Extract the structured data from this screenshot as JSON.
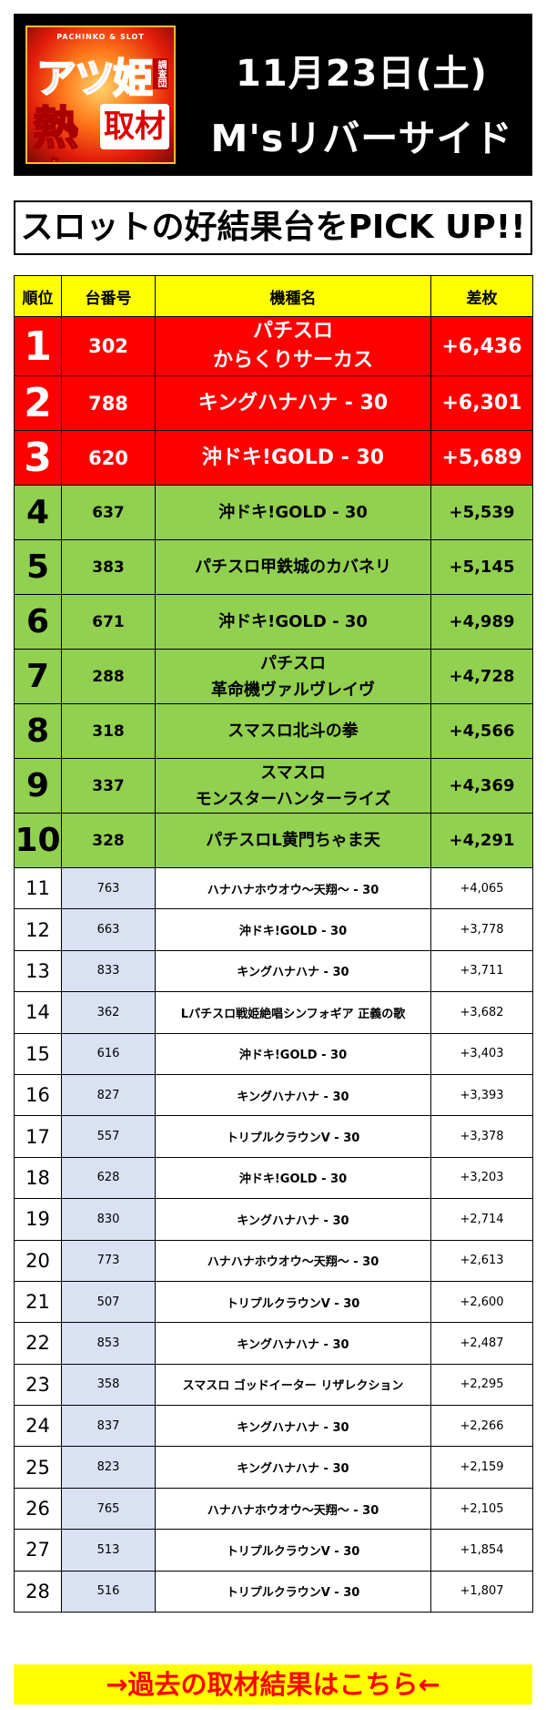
{
  "header": {
    "logo": {
      "brand": "PACHINKO & SLOT",
      "line1": "アツ姫",
      "line1_sub": "調査団",
      "line2a": "熱血",
      "line2b": "取材"
    },
    "date": "11月23日(土)",
    "place": "M'sリバーサイド"
  },
  "banner": "スロットの好結果台をPICK UP!!",
  "table": {
    "headers": [
      "順位",
      "台番号",
      "機種名",
      "差枚"
    ],
    "rows": [
      {
        "rank": "1",
        "no": "302",
        "name1": "パチスロ",
        "name2": "からくりサーカス",
        "diff": "+6,436",
        "tier": "red"
      },
      {
        "rank": "2",
        "no": "788",
        "name1": "キングハナハナ - 30",
        "name2": "",
        "diff": "+6,301",
        "tier": "red"
      },
      {
        "rank": "3",
        "no": "620",
        "name1": "沖ドキ!GOLD - 30",
        "name2": "",
        "diff": "+5,689",
        "tier": "red"
      },
      {
        "rank": "4",
        "no": "637",
        "name1": "沖ドキ!GOLD - 30",
        "name2": "",
        "diff": "+5,539",
        "tier": "green"
      },
      {
        "rank": "5",
        "no": "383",
        "name1": "パチスロ甲鉄城のカバネリ",
        "name2": "",
        "diff": "+5,145",
        "tier": "green"
      },
      {
        "rank": "6",
        "no": "671",
        "name1": "沖ドキ!GOLD - 30",
        "name2": "",
        "diff": "+4,989",
        "tier": "green"
      },
      {
        "rank": "7",
        "no": "288",
        "name1": "パチスロ",
        "name2": "革命機ヴァルヴレイヴ",
        "diff": "+4,728",
        "tier": "green"
      },
      {
        "rank": "8",
        "no": "318",
        "name1": "スマスロ北斗の拳",
        "name2": "",
        "diff": "+4,566",
        "tier": "green"
      },
      {
        "rank": "9",
        "no": "337",
        "name1": "スマスロ",
        "name2": "モンスターハンターライズ",
        "diff": "+4,369",
        "tier": "green"
      },
      {
        "rank": "10",
        "no": "328",
        "name1": "パチスロL黄門ちゃま天",
        "name2": "",
        "diff": "+4,291",
        "tier": "green"
      },
      {
        "rank": "11",
        "no": "763",
        "name1": "ハナハナホウオウ～天翔～ - 30",
        "name2": "",
        "diff": "+4,065",
        "tier": "low"
      },
      {
        "rank": "12",
        "no": "663",
        "name1": "沖ドキ!GOLD - 30",
        "name2": "",
        "diff": "+3,778",
        "tier": "low"
      },
      {
        "rank": "13",
        "no": "833",
        "name1": "キングハナハナ - 30",
        "name2": "",
        "diff": "+3,711",
        "tier": "low"
      },
      {
        "rank": "14",
        "no": "362",
        "name1": "Lパチスロ戦姫絶唱シンフォギア 正義の歌",
        "name2": "",
        "diff": "+3,682",
        "tier": "low"
      },
      {
        "rank": "15",
        "no": "616",
        "name1": "沖ドキ!GOLD - 30",
        "name2": "",
        "diff": "+3,403",
        "tier": "low"
      },
      {
        "rank": "16",
        "no": "827",
        "name1": "キングハナハナ - 30",
        "name2": "",
        "diff": "+3,393",
        "tier": "low"
      },
      {
        "rank": "17",
        "no": "557",
        "name1": "トリプルクラウンV - 30",
        "name2": "",
        "diff": "+3,378",
        "tier": "low"
      },
      {
        "rank": "18",
        "no": "628",
        "name1": "沖ドキ!GOLD - 30",
        "name2": "",
        "diff": "+3,203",
        "tier": "low"
      },
      {
        "rank": "19",
        "no": "830",
        "name1": "キングハナハナ - 30",
        "name2": "",
        "diff": "+2,714",
        "tier": "low"
      },
      {
        "rank": "20",
        "no": "773",
        "name1": "ハナハナホウオウ～天翔～ - 30",
        "name2": "",
        "diff": "+2,613",
        "tier": "low"
      },
      {
        "rank": "21",
        "no": "507",
        "name1": "トリプルクラウンV - 30",
        "name2": "",
        "diff": "+2,600",
        "tier": "low"
      },
      {
        "rank": "22",
        "no": "853",
        "name1": "キングハナハナ - 30",
        "name2": "",
        "diff": "+2,487",
        "tier": "low"
      },
      {
        "rank": "23",
        "no": "358",
        "name1": "スマスロ ゴッドイーター リザレクション",
        "name2": "",
        "diff": "+2,295",
        "tier": "low"
      },
      {
        "rank": "24",
        "no": "837",
        "name1": "キングハナハナ - 30",
        "name2": "",
        "diff": "+2,266",
        "tier": "low"
      },
      {
        "rank": "25",
        "no": "823",
        "name1": "キングハナハナ - 30",
        "name2": "",
        "diff": "+2,159",
        "tier": "low"
      },
      {
        "rank": "26",
        "no": "765",
        "name1": "ハナハナホウオウ～天翔～ - 30",
        "name2": "",
        "diff": "+2,105",
        "tier": "low"
      },
      {
        "rank": "27",
        "no": "513",
        "name1": "トリプルクラウンV - 30",
        "name2": "",
        "diff": "+1,854",
        "tier": "low"
      },
      {
        "rank": "28",
        "no": "516",
        "name1": "トリプルクラウンV - 30",
        "name2": "",
        "diff": "+1,807",
        "tier": "low"
      }
    ]
  },
  "footer": "→過去の取材結果はこちら←",
  "colors": {
    "header_bg": "#000000",
    "top3": "#ff0000",
    "top10": "#92d050",
    "header_row": "#ffff00",
    "machine_no_bg": "#d9e1f2",
    "footer_text": "#ff0000"
  }
}
